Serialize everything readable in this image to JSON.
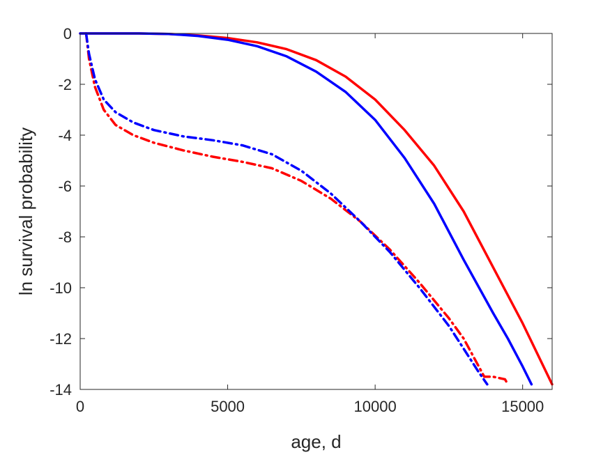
{
  "chart_data": {
    "type": "line",
    "title": "",
    "xlabel": "age, d",
    "ylabel": "ln survival probability",
    "xlim": [
      0,
      16000
    ],
    "ylim": [
      -14,
      0
    ],
    "xticks": [
      0,
      5000,
      10000,
      15000
    ],
    "yticks": [
      0,
      -2,
      -4,
      -6,
      -8,
      -10,
      -12,
      -14
    ],
    "grid": false,
    "legend": "none",
    "series": [
      {
        "color": "#ff0000",
        "style": "solid",
        "x": [
          0,
          1000,
          2000,
          3000,
          4000,
          5000,
          6000,
          7000,
          8000,
          9000,
          10000,
          11000,
          12000,
          13000,
          14000,
          15000,
          16000
        ],
        "y": [
          0,
          0,
          0,
          -0.02,
          -0.08,
          -0.18,
          -0.35,
          -0.62,
          -1.05,
          -1.7,
          -2.6,
          -3.8,
          -5.2,
          -7.0,
          -9.2,
          -11.4,
          -13.8
        ]
      },
      {
        "color": "#0000ff",
        "style": "solid",
        "x": [
          0,
          1000,
          2000,
          3000,
          4000,
          5000,
          6000,
          7000,
          8000,
          9000,
          10000,
          11000,
          12000,
          13000,
          14000,
          14500,
          15000,
          15300
        ],
        "y": [
          0,
          0,
          0,
          -0.02,
          -0.1,
          -0.25,
          -0.5,
          -0.9,
          -1.5,
          -2.3,
          -3.4,
          -4.9,
          -6.7,
          -8.9,
          -11.0,
          -12.0,
          -13.1,
          -13.8
        ]
      },
      {
        "color": "#ff0000",
        "style": "dashdot",
        "x": [
          200,
          300,
          500,
          800,
          1200,
          1800,
          2500,
          3500,
          4500,
          5500,
          6500,
          7500,
          8500,
          9500,
          10500,
          11500,
          12500,
          13000,
          13700,
          14000,
          14400,
          14500
        ],
        "y": [
          0,
          -1.0,
          -2.1,
          -3.0,
          -3.6,
          -4.0,
          -4.3,
          -4.6,
          -4.85,
          -5.05,
          -5.3,
          -5.8,
          -6.5,
          -7.4,
          -8.5,
          -9.8,
          -11.2,
          -12.0,
          -13.5,
          -13.5,
          -13.6,
          -13.8
        ]
      },
      {
        "color": "#0000ff",
        "style": "dashdot",
        "x": [
          200,
          300,
          500,
          800,
          1200,
          1800,
          2500,
          3500,
          4500,
          5500,
          6500,
          7500,
          8500,
          9500,
          10500,
          11500,
          12500,
          13000,
          13500,
          13800
        ],
        "y": [
          0,
          -0.8,
          -1.8,
          -2.6,
          -3.1,
          -3.5,
          -3.8,
          -4.05,
          -4.2,
          -4.4,
          -4.75,
          -5.4,
          -6.3,
          -7.4,
          -8.6,
          -10.0,
          -11.5,
          -12.4,
          -13.3,
          -13.8
        ]
      }
    ]
  }
}
